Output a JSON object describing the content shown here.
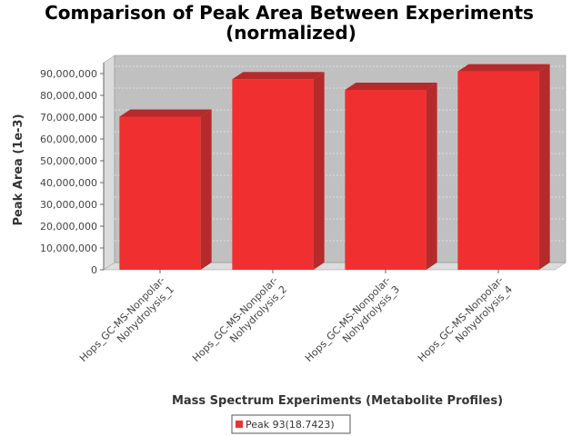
{
  "chart_data": {
    "type": "bar",
    "title_lines": [
      "Comparison of Peak Area Between Experiments",
      "(normalized)"
    ],
    "xlabel": "Mass Spectrum Experiments (Metabolite Profiles)",
    "ylabel": "Peak Area (1e-3)",
    "categories": [
      [
        "Hops_GC-MS-Nonpolar-",
        "Nohydrolysis_1"
      ],
      [
        "Hops_GC-MS-Nonpolar-",
        "Nohydrolysis_2"
      ],
      [
        "Hops_GC-MS-Nonpolar-",
        "Nohydrolysis_3"
      ],
      [
        "Hops_GC-MS-Nonpolar-",
        "Nohydrolysis_4"
      ]
    ],
    "series": [
      {
        "name": "Peak 93(18.7423)",
        "values": [
          70200000,
          87400000,
          82500000,
          91000000
        ]
      }
    ],
    "y_ticks": [
      "0",
      "10,000,000",
      "20,000,000",
      "30,000,000",
      "40,000,000",
      "50,000,000",
      "60,000,000",
      "70,000,000",
      "80,000,000",
      "90,000,000"
    ],
    "ylim": [
      0,
      95000000
    ],
    "grid": true,
    "legend_position": "bottom-center",
    "colors": {
      "bar": "#f03030",
      "bar_top": "#b52a2a",
      "bar_side": "#b52a2a",
      "plot_bg": "#c0c0c0",
      "wall": "#dcdcdc"
    }
  }
}
